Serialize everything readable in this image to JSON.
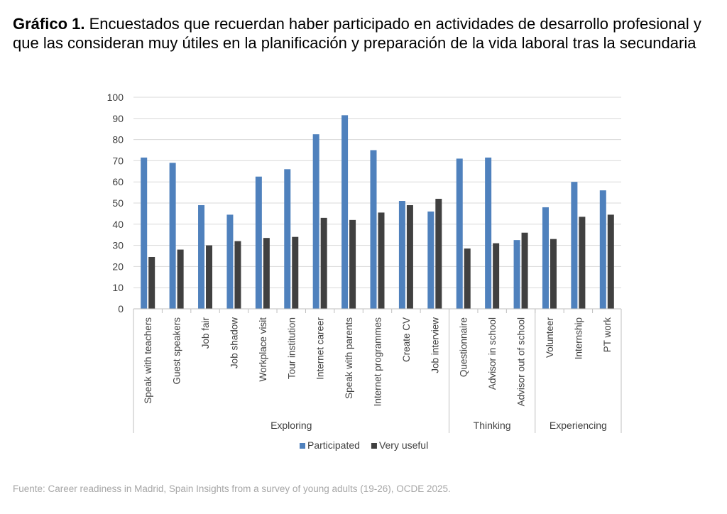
{
  "title_bold": "Gráfico 1.",
  "title_text": "Encuestados que recuerdan haber participado en actividades de desarrollo profesional y que las consideran muy útiles en la planificación y preparación de la vida laboral tras la secundaria",
  "source": "Fuente: Career readiness in Madrid, Spain Insights from a survey of young adults (19-26), OCDE 2025.",
  "chart_data": {
    "type": "bar",
    "categories": [
      "Speak with teachers",
      "Guest speakers",
      "Job fair",
      "Job shadow",
      "Workplace visit",
      "Tour institution",
      "Internet career",
      "Speak with parents",
      "Internet programmes",
      "Create CV",
      "Job interview",
      "Questionnaire",
      "Advisor in school",
      "Advisor out of school",
      "Volunteer",
      "Internship",
      "PT work"
    ],
    "groups": [
      {
        "name": "Exploring",
        "start": 0,
        "end": 10
      },
      {
        "name": "Thinking",
        "start": 11,
        "end": 13
      },
      {
        "name": "Experiencing",
        "start": 14,
        "end": 16
      }
    ],
    "series": [
      {
        "name": "Participated",
        "color": "#4f81bd",
        "values": [
          71.5,
          69,
          49,
          44.5,
          62.5,
          66,
          82.5,
          91.5,
          75,
          51,
          46,
          71,
          71.5,
          32.5,
          48,
          60,
          56
        ]
      },
      {
        "name": "Very useful",
        "color": "#404040",
        "values": [
          24.5,
          28,
          30,
          32,
          33.5,
          34,
          43,
          42,
          45.5,
          49,
          52,
          28.5,
          31,
          36,
          33,
          43.5,
          44.5
        ]
      }
    ],
    "ylim": [
      0,
      100
    ],
    "yticks": [
      0,
      10,
      20,
      30,
      40,
      50,
      60,
      70,
      80,
      90,
      100
    ],
    "grid": true,
    "legend_position": "bottom"
  }
}
